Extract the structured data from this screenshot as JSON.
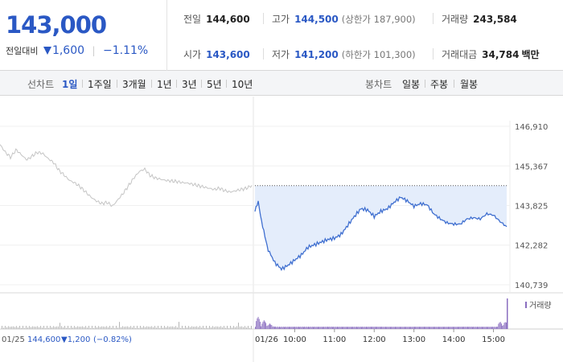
{
  "price": {
    "current": "143,000",
    "change_label": "전일대비",
    "change_amount": "1,600",
    "change_pct": "−1.11%",
    "down_color": "#2a58c4"
  },
  "stats": {
    "prev_close": {
      "label": "전일",
      "value": "144,600"
    },
    "high": {
      "label": "고가",
      "value": "144,500",
      "limit": "(상한가 187,900)"
    },
    "volume": {
      "label": "거래량",
      "value": "243,584"
    },
    "open": {
      "label": "시가",
      "value": "143,600"
    },
    "low": {
      "label": "저가",
      "value": "141,200",
      "limit": "(하한가 101,300)"
    },
    "turnover": {
      "label": "거래대금",
      "value": "34,784",
      "unit": "백만"
    }
  },
  "toolbar": {
    "line_label": "선차트",
    "periods": [
      "1일",
      "1주일",
      "3개월",
      "1년",
      "3년",
      "5년",
      "10년"
    ],
    "active_period": "1일",
    "candle_label": "봉차트",
    "candle_periods": [
      "일봉",
      "주봉",
      "월봉"
    ]
  },
  "chart_data": {
    "type": "line",
    "y_ticks": [
      "146,910",
      "145,367",
      "143,825",
      "142,282",
      "140,739"
    ],
    "ylim": [
      140739,
      146910
    ],
    "reference_price": 144600,
    "prev_day": {
      "date": "01/25",
      "close": "144,600",
      "change": "▼1,200",
      "change_pct": "(−0.82%)",
      "prices": [
        146200,
        145900,
        145700,
        146000,
        145800,
        145600,
        145750,
        145900,
        145850,
        145650,
        145500,
        145200,
        145000,
        144800,
        144700,
        144550,
        144350,
        144150,
        144000,
        143900,
        143950,
        143800,
        144050,
        144300,
        144600,
        144900,
        145150,
        145250,
        145000,
        144900,
        144850,
        144800,
        144780,
        144760,
        144720,
        144700,
        144650,
        144600,
        144550,
        144500,
        144450,
        144500,
        144400,
        144350,
        144400,
        144450,
        144500,
        144600
      ]
    },
    "today": {
      "date": "01/26",
      "x_labels": [
        "10:00",
        "11:00",
        "12:00",
        "13:00",
        "14:00",
        "15:00"
      ],
      "times": [
        "09:00",
        "09:05",
        "09:10",
        "09:15",
        "09:20",
        "09:30",
        "09:40",
        "09:50",
        "10:00",
        "10:10",
        "10:20",
        "10:30",
        "10:40",
        "10:50",
        "11:00",
        "11:10",
        "11:20",
        "11:30",
        "11:40",
        "11:50",
        "12:00",
        "12:10",
        "12:20",
        "12:30",
        "12:40",
        "12:50",
        "13:00",
        "13:10",
        "13:20",
        "13:30",
        "13:40",
        "13:50",
        "14:00",
        "14:10",
        "14:20",
        "14:30",
        "14:40",
        "14:50",
        "15:00",
        "15:10",
        "15:20"
      ],
      "prices": [
        143600,
        144000,
        143200,
        142600,
        142100,
        141600,
        141350,
        141500,
        141700,
        141900,
        142200,
        142300,
        142400,
        142500,
        142550,
        142700,
        143050,
        143400,
        143700,
        143650,
        143400,
        143600,
        143700,
        143950,
        144150,
        144000,
        143800,
        143900,
        143850,
        143500,
        143300,
        143150,
        143100,
        143100,
        143300,
        143350,
        143300,
        143500,
        143450,
        143200,
        143000
      ]
    },
    "volume_legend": "거래량",
    "colors": {
      "prev_line": "#c4c4c4",
      "today_line": "#3f6fd0",
      "today_fill": "#e4edfb",
      "volume_today": "#8a6ec0",
      "volume_prev": "#b5b5b5"
    }
  }
}
